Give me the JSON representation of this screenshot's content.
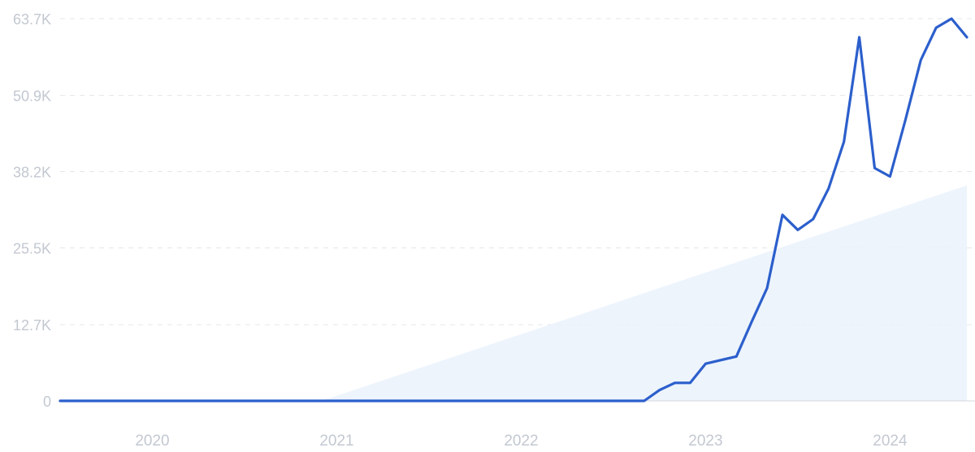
{
  "chart_data": {
    "type": "line",
    "title": "",
    "xlabel": "",
    "ylabel": "",
    "y_ticks": [
      "0",
      "12.7K",
      "25.5K",
      "38.2K",
      "50.9K",
      "63.7K"
    ],
    "y_tick_values": [
      0,
      12700,
      25500,
      38200,
      50900,
      63700
    ],
    "ylim": [
      0,
      63700
    ],
    "x_ticks": [
      "2020",
      "2021",
      "2022",
      "2023",
      "2024"
    ],
    "x_tick_values": [
      "2020-01",
      "2021-01",
      "2022-01",
      "2023-01",
      "2024-01"
    ],
    "xlim": [
      "2019-07",
      "2024-06"
    ],
    "grid": true,
    "legend": "none",
    "colors": {
      "line": "#2c5fcc",
      "trend_area": "#eaf2fc",
      "grid": "#e3e6eb",
      "tick_text": "#c3c8d1"
    },
    "series": [
      {
        "x": [
          "2019-07",
          "2020-01",
          "2021-01",
          "2022-01",
          "2022-08",
          "2022-09",
          "2022-10",
          "2022-11",
          "2022-12",
          "2023-01",
          "2023-02",
          "2023-03",
          "2023-04",
          "2023-05",
          "2023-06",
          "2023-07",
          "2023-08",
          "2023-09",
          "2023-10",
          "2023-11",
          "2023-12",
          "2024-01",
          "2024-02",
          "2024-03",
          "2024-04",
          "2024-05",
          "2024-06"
        ],
        "values": [
          0,
          0,
          0,
          0,
          0,
          0,
          1800,
          3000,
          3000,
          6200,
          6800,
          7400,
          13200,
          18800,
          31000,
          28500,
          30300,
          35400,
          43200,
          60600,
          38800,
          37400,
          46800,
          56800,
          62200,
          63700,
          60600
        ]
      }
    ],
    "trend_area": {
      "x": [
        "2020-12",
        "2024-06"
      ],
      "values": [
        0,
        35900
      ]
    }
  }
}
